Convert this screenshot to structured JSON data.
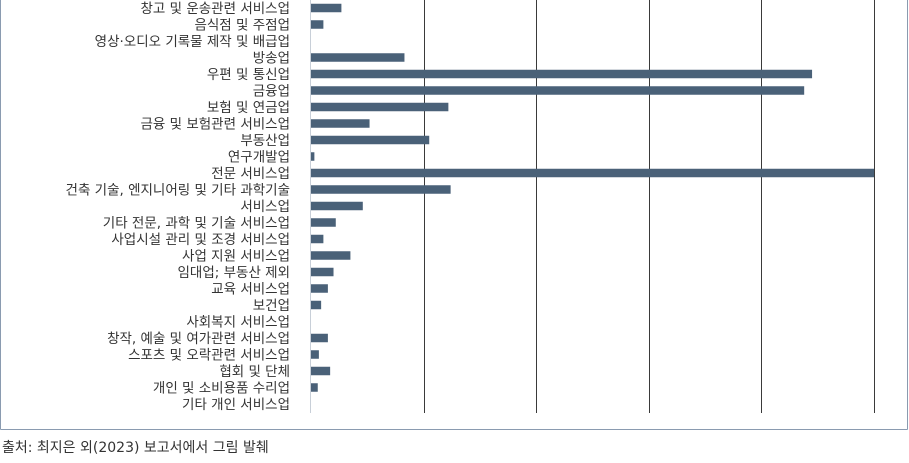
{
  "chart_data": {
    "type": "bar",
    "orientation": "horizontal",
    "categories": [
      "창고 및 운송관련 서비스업",
      "음식점 및 주점업",
      "영상·오디오 기록물 제작 및 배급업",
      "방송업",
      "우편 및 통신업",
      "금융업",
      "보험 및 연금업",
      "금융 및 보험관련 서비스업",
      "부동산업",
      "연구개발업",
      "전문 서비스업",
      "건축 기술, 엔지니어링 및 기타 과학기술",
      "서비스업",
      "기타 전문, 과학 및 기술 서비스업",
      "사업시설 관리 및 조경 서비스업",
      "사업 지원 서비스업",
      "임대업; 부동산 제외",
      "교육 서비스업",
      "보건업",
      "사회복지 서비스업",
      "창작, 예술 및 여가관련 서비스업",
      "스포츠 및 오락관련 서비스업",
      "협회 및 단체",
      "개인 및 소비용품 수리업",
      "기타 개인 서비스업"
    ],
    "values": [
      0.27,
      0.11,
      0.0,
      0.83,
      4.45,
      4.38,
      1.22,
      0.52,
      1.05,
      0.03,
      5.0,
      1.24,
      0.46,
      0.22,
      0.11,
      0.35,
      0.2,
      0.15,
      0.09,
      0.0,
      0.15,
      0.07,
      0.17,
      0.06,
      0.0
    ],
    "xlim": [
      0,
      5
    ],
    "x_gridlines": [
      1,
      2,
      3,
      4,
      5
    ],
    "grid": true,
    "legend": "none",
    "bar_color": "#4a6178",
    "grid_color": "#3a3a3a",
    "frame_color": "#8a9bb0"
  },
  "source_note": "출처: 최지은 외(2023) 보고서에서 그림 발췌"
}
